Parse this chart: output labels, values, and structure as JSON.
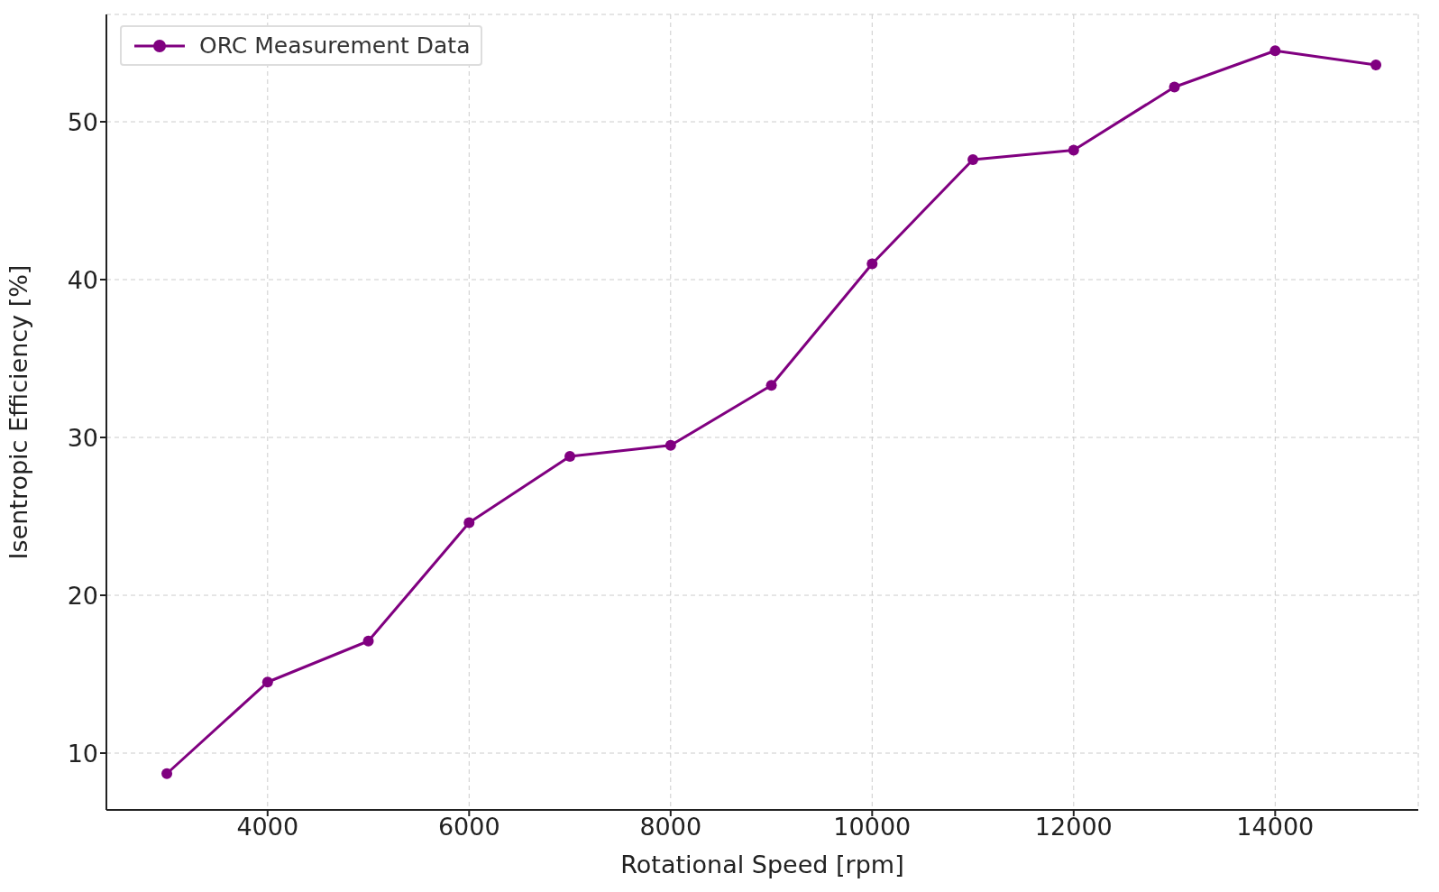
{
  "chart_data": {
    "type": "line",
    "xlabel": "Rotational Speed [rpm]",
    "ylabel": "Isentropic Efficiency [%]",
    "x": [
      3000,
      4000,
      5000,
      6000,
      7000,
      8000,
      9000,
      10000,
      11000,
      12000,
      13000,
      14000,
      15000
    ],
    "series": [
      {
        "name": "ORC Measurement Data",
        "color": "#800080",
        "values": [
          8.7,
          14.5,
          17.1,
          24.6,
          28.8,
          29.5,
          33.3,
          41.0,
          47.6,
          48.2,
          52.2,
          54.5,
          53.6
        ]
      }
    ],
    "xlim": [
      2400,
      15420
    ],
    "xticks": [
      4000,
      6000,
      8000,
      10000,
      12000,
      14000
    ],
    "ylim": [
      6.4,
      56.8
    ],
    "yticks": [
      10,
      20,
      30,
      40,
      50
    ],
    "grid": true,
    "legend": "top left",
    "marker": "circle",
    "line_style": "solid"
  }
}
